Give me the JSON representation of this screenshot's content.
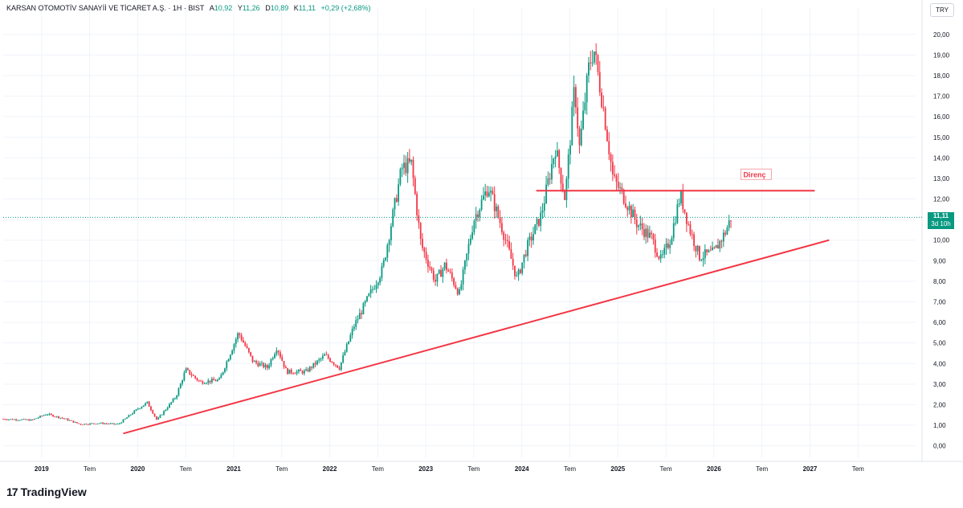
{
  "header": {
    "symbol": "KARSAN OTOMOTİV SANAYİİ VE TİCARET A.Ş. · 1H · BIST",
    "open_label": "A",
    "open": "10,92",
    "high_label": "Y",
    "high": "11,26",
    "low_label": "D",
    "low": "10,89",
    "close_label": "K",
    "close": "11,11",
    "change": "+0,29 (+2,68%)"
  },
  "currency_button": "TRY",
  "price_tag": {
    "price": "11,11",
    "countdown": "3d 10h"
  },
  "brand": {
    "mark": "17",
    "name": "TradingView"
  },
  "colors": {
    "up": "#089981",
    "down": "#f23645",
    "annotation": "#f23645",
    "grid": "#f0f3fa",
    "last_price_line": "#089981"
  },
  "chart_data": {
    "type": "candlestick",
    "ylim": [
      -0.6,
      20.5
    ],
    "y_ticks": [
      "20,00",
      "19,00",
      "18,00",
      "17,00",
      "16,00",
      "15,00",
      "14,00",
      "13,00",
      "12,00",
      "11,00",
      "10,00",
      "9,00",
      "8,00",
      "7,00",
      "6,00",
      "5,00",
      "4,00",
      "3,00",
      "2,00",
      "1,00",
      "0,00"
    ],
    "x_ticks": [
      "2019",
      "Tem",
      "2020",
      "Tem",
      "2021",
      "Tem",
      "2022",
      "Tem",
      "2023",
      "Tem",
      "2024",
      "Tem",
      "2025",
      "Tem",
      "2026",
      "Tem",
      "2027",
      "Tem"
    ],
    "x_tick_dates": [
      2019.0,
      2019.5,
      2020.0,
      2020.5,
      2021.0,
      2021.5,
      2022.0,
      2022.5,
      2023.0,
      2023.5,
      2024.0,
      2024.5,
      2025.0,
      2025.5,
      2026.0,
      2026.5,
      2027.0,
      2027.5
    ],
    "xlim": [
      2018.6,
      2028.1
    ],
    "price_path": [
      [
        2018.6,
        1.3
      ],
      [
        2018.9,
        1.25
      ],
      [
        2019.05,
        1.55
      ],
      [
        2019.25,
        1.3
      ],
      [
        2019.4,
        1.05
      ],
      [
        2019.6,
        1.1
      ],
      [
        2019.8,
        1.05
      ],
      [
        2020.0,
        1.8
      ],
      [
        2020.1,
        2.1
      ],
      [
        2020.2,
        1.25
      ],
      [
        2020.4,
        2.4
      ],
      [
        2020.5,
        3.7
      ],
      [
        2020.65,
        3.1
      ],
      [
        2020.85,
        3.2
      ],
      [
        2021.05,
        5.5
      ],
      [
        2021.2,
        4.1
      ],
      [
        2021.35,
        3.8
      ],
      [
        2021.45,
        4.8
      ],
      [
        2021.55,
        3.6
      ],
      [
        2021.75,
        3.6
      ],
      [
        2021.95,
        4.4
      ],
      [
        2022.1,
        3.8
      ],
      [
        2022.25,
        5.8
      ],
      [
        2022.4,
        7.2
      ],
      [
        2022.55,
        8.6
      ],
      [
        2022.75,
        13.5
      ],
      [
        2022.85,
        13.7
      ],
      [
        2022.95,
        9.8
      ],
      [
        2023.1,
        8.0
      ],
      [
        2023.2,
        8.8
      ],
      [
        2023.35,
        7.4
      ],
      [
        2023.5,
        11.0
      ],
      [
        2023.65,
        12.6
      ],
      [
        2023.8,
        10.5
      ],
      [
        2023.95,
        8.1
      ],
      [
        2024.05,
        9.6
      ],
      [
        2024.2,
        11.2
      ],
      [
        2024.35,
        14.5
      ],
      [
        2024.45,
        12.0
      ],
      [
        2024.55,
        17.5
      ],
      [
        2024.6,
        14.5
      ],
      [
        2024.7,
        18.5
      ],
      [
        2024.75,
        19.3
      ],
      [
        2024.85,
        16.4
      ],
      [
        2024.95,
        13.0
      ],
      [
        2025.05,
        12.2
      ],
      [
        2025.2,
        10.8
      ],
      [
        2025.35,
        10.1
      ],
      [
        2025.45,
        9.0
      ],
      [
        2025.55,
        10.1
      ],
      [
        2025.65,
        12.2
      ],
      [
        2025.75,
        10.5
      ],
      [
        2025.85,
        9.2
      ],
      [
        2026.0,
        9.4
      ],
      [
        2026.12,
        10.4
      ],
      [
        2026.18,
        11.11
      ]
    ],
    "last_price": 11.11,
    "annotations": [
      {
        "type": "horizontal_segment",
        "label": "Direnç",
        "y": 12.4,
        "x_from": 2024.15,
        "x_to": 2027.05
      },
      {
        "type": "trendline",
        "from": [
          2019.85,
          0.6
        ],
        "to": [
          2027.2,
          10.0
        ]
      }
    ]
  }
}
